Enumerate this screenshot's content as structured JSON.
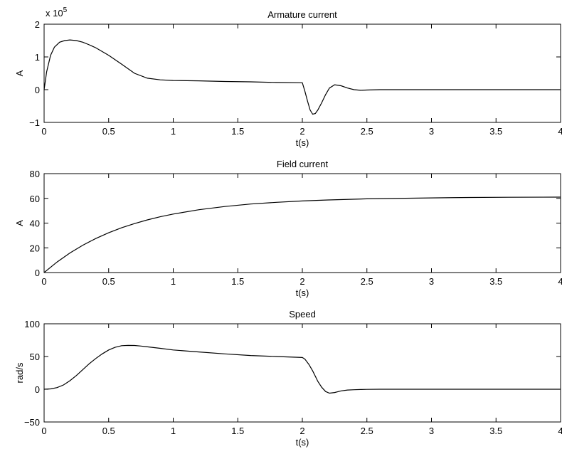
{
  "chart_data": [
    {
      "type": "line",
      "title": "Armature current",
      "xlabel": "t(s)",
      "ylabel": "A",
      "scale_label": "x 10",
      "scale_exponent": "5",
      "xlim": [
        0,
        4
      ],
      "ylim": [
        -1,
        2
      ],
      "xticks": [
        "0",
        "0.5",
        "1",
        "1.5",
        "2",
        "2.5",
        "3",
        "3.5",
        "4"
      ],
      "yticks": [
        "−1",
        "0",
        "1",
        "2"
      ],
      "series": [
        {
          "x": [
            0,
            0.02,
            0.05,
            0.08,
            0.12,
            0.16,
            0.2,
            0.25,
            0.3,
            0.35,
            0.4,
            0.5,
            0.6,
            0.7,
            0.8,
            0.9,
            1.0,
            1.2,
            1.4,
            1.6,
            1.8,
            2.0,
            2.02,
            2.04,
            2.06,
            2.08,
            2.1,
            2.12,
            2.15,
            2.18,
            2.21,
            2.25,
            2.3,
            2.35,
            2.4,
            2.45,
            2.5,
            2.6,
            3.0,
            3.5,
            4.0
          ],
          "y": [
            0,
            0.55,
            1.05,
            1.3,
            1.45,
            1.5,
            1.52,
            1.5,
            1.45,
            1.37,
            1.28,
            1.05,
            0.78,
            0.5,
            0.35,
            0.3,
            0.28,
            0.27,
            0.25,
            0.24,
            0.22,
            0.21,
            -0.05,
            -0.35,
            -0.62,
            -0.75,
            -0.73,
            -0.62,
            -0.4,
            -0.15,
            0.05,
            0.15,
            0.12,
            0.05,
            0.0,
            -0.02,
            -0.01,
            0.0,
            0.0,
            0.0,
            0.0
          ]
        }
      ]
    },
    {
      "type": "line",
      "title": "Field current",
      "xlabel": "t(s)",
      "ylabel": "A",
      "xlim": [
        0,
        4
      ],
      "ylim": [
        0,
        80
      ],
      "xticks": [
        "0",
        "0.5",
        "1",
        "1.5",
        "2",
        "2.5",
        "3",
        "3.5",
        "4"
      ],
      "yticks": [
        "0",
        "20",
        "40",
        "60",
        "80"
      ],
      "series": [
        {
          "x": [
            0,
            0.1,
            0.2,
            0.3,
            0.4,
            0.5,
            0.6,
            0.7,
            0.8,
            0.9,
            1.0,
            1.2,
            1.4,
            1.6,
            1.8,
            2.0,
            2.2,
            2.5,
            2.8,
            3.0,
            3.3,
            3.6,
            4.0
          ],
          "y": [
            0,
            8.5,
            15.8,
            22.1,
            27.5,
            32.2,
            36.2,
            39.6,
            42.6,
            45.1,
            47.3,
            50.8,
            53.4,
            55.4,
            56.8,
            57.9,
            58.7,
            59.6,
            60.1,
            60.4,
            60.7,
            60.9,
            61.0
          ]
        }
      ]
    },
    {
      "type": "line",
      "title": "Speed",
      "xlabel": "t(s)",
      "ylabel": "rad/s",
      "xlim": [
        0,
        4
      ],
      "ylim": [
        -50,
        100
      ],
      "xticks": [
        "0",
        "0.5",
        "1",
        "1.5",
        "2",
        "2.5",
        "3",
        "3.5",
        "4"
      ],
      "yticks": [
        "−50",
        "0",
        "50",
        "100"
      ],
      "series": [
        {
          "x": [
            0,
            0.05,
            0.1,
            0.15,
            0.2,
            0.25,
            0.3,
            0.35,
            0.4,
            0.45,
            0.5,
            0.55,
            0.6,
            0.65,
            0.7,
            0.75,
            0.8,
            0.9,
            1.0,
            1.2,
            1.4,
            1.6,
            1.8,
            2.0,
            2.02,
            2.05,
            2.08,
            2.1,
            2.12,
            2.15,
            2.18,
            2.21,
            2.25,
            2.3,
            2.35,
            2.4,
            2.45,
            2.5,
            2.6,
            3.0,
            3.5,
            4.0
          ],
          "y": [
            0,
            0.5,
            2.5,
            6.5,
            13,
            21,
            30,
            39,
            47,
            54,
            60,
            64,
            66.5,
            67,
            66.8,
            66,
            64.8,
            62.5,
            60,
            57,
            54,
            51.5,
            50,
            48.5,
            46,
            38,
            28,
            20,
            12,
            3,
            -3.5,
            -6,
            -5,
            -2.5,
            -1.2,
            -0.8,
            -0.4,
            -0.2,
            0,
            0,
            0,
            0
          ]
        }
      ]
    }
  ]
}
